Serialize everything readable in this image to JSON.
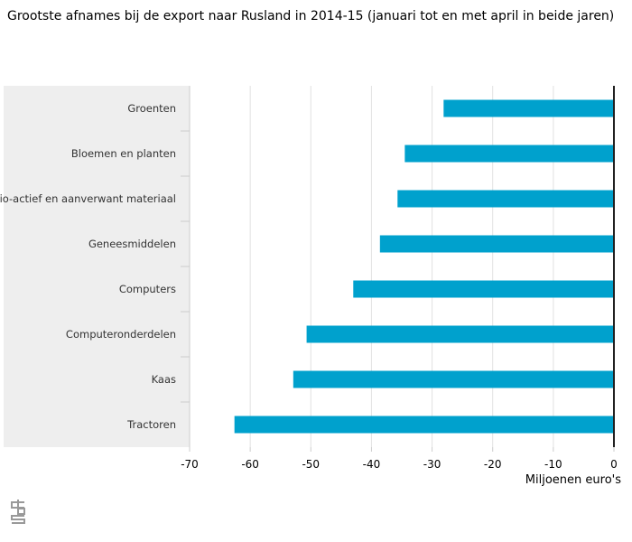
{
  "chart_data": {
    "type": "bar",
    "orientation": "horizontal",
    "title": "Grootste afnames bij de export naar Rusland in 2014-15 (januari tot en met april in beide jaren)",
    "categories": [
      "Groenten",
      "Bloemen en planten",
      "Radio-actief en aanverwant materiaal",
      "Geneesmiddelen",
      "Computers",
      "Computeronderdelen",
      "Kaas",
      "Tractoren"
    ],
    "values": [
      -28.1,
      -34.5,
      -35.7,
      -38.6,
      -43.0,
      -50.7,
      -52.9,
      -62.6
    ],
    "xlabel": "Miljoenen euro's",
    "ylabel": "",
    "xlim": [
      -70,
      0
    ],
    "xticks": [
      -70,
      -60,
      -50,
      -40,
      -30,
      -20,
      -10,
      0
    ],
    "grid": true,
    "bar_color": "#00a1cd"
  }
}
